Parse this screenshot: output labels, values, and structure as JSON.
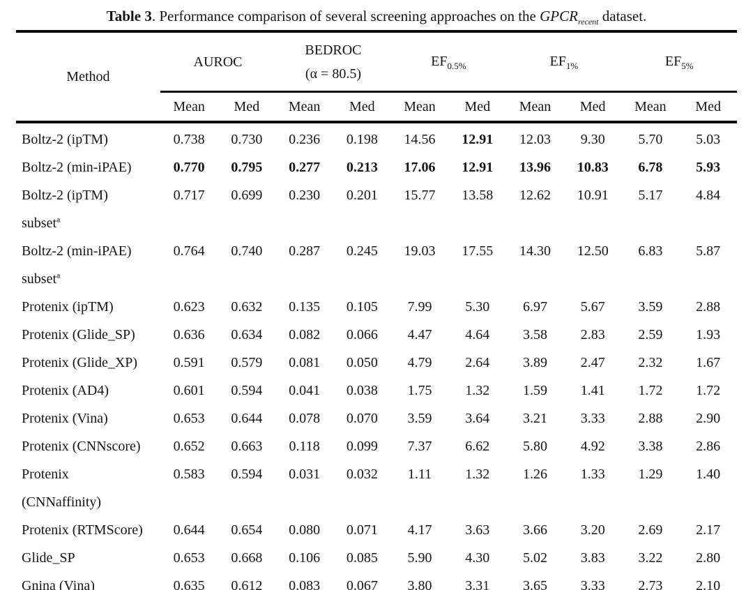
{
  "title": {
    "label": "Table 3",
    "body": ". Performance comparison of several screening approaches on the ",
    "dataset": "GPCR",
    "dataset_subscript": "recent",
    "suffix": " dataset."
  },
  "table": {
    "method_header": "Method",
    "column_groups": [
      {
        "label": "AUROC",
        "line2": "",
        "subscript": ""
      },
      {
        "label": "BEDROC",
        "line2": "(α = 80.5)",
        "subscript": ""
      },
      {
        "label": "EF",
        "line2": "",
        "subscript": "0.5%"
      },
      {
        "label": "EF",
        "line2": "",
        "subscript": "1%"
      },
      {
        "label": "EF",
        "line2": "",
        "subscript": "5%"
      }
    ],
    "stat_headers": [
      "Mean",
      "Med"
    ],
    "rows": [
      {
        "method_lines": [
          "Boltz-2 (ipTM)"
        ],
        "method_superscript": "",
        "values": [
          "0.738",
          "0.730",
          "0.236",
          "0.198",
          "14.56",
          "12.91",
          "12.03",
          "9.30",
          "5.70",
          "5.03"
        ],
        "bold": [
          5
        ]
      },
      {
        "method_lines": [
          "Boltz-2 (min-iPAE)"
        ],
        "method_superscript": "",
        "values": [
          "0.770",
          "0.795",
          "0.277",
          "0.213",
          "17.06",
          "12.91",
          "13.96",
          "10.83",
          "6.78",
          "5.93"
        ],
        "bold": [
          0,
          1,
          2,
          3,
          4,
          5,
          6,
          7,
          8,
          9
        ]
      },
      {
        "method_lines": [
          "Boltz-2 (ipTM)",
          "subset"
        ],
        "method_superscript": "a",
        "values": [
          "0.717",
          "0.699",
          "0.230",
          "0.201",
          "15.77",
          "13.58",
          "12.62",
          "10.91",
          "5.17",
          "4.84"
        ],
        "bold": []
      },
      {
        "method_lines": [
          "Boltz-2 (min-iPAE)",
          "subset"
        ],
        "method_superscript": "a",
        "values": [
          "0.764",
          "0.740",
          "0.287",
          "0.245",
          "19.03",
          "17.55",
          "14.30",
          "12.50",
          "6.83",
          "5.87"
        ],
        "bold": []
      },
      {
        "method_lines": [
          "Protenix (ipTM)"
        ],
        "method_superscript": "",
        "values": [
          "0.623",
          "0.632",
          "0.135",
          "0.105",
          "7.99",
          "5.30",
          "6.97",
          "5.67",
          "3.59",
          "2.88"
        ],
        "bold": []
      },
      {
        "method_lines": [
          "Protenix (Glide_SP)"
        ],
        "method_superscript": "",
        "values": [
          "0.636",
          "0.634",
          "0.082",
          "0.066",
          "4.47",
          "4.64",
          "3.58",
          "2.83",
          "2.59",
          "1.93"
        ],
        "bold": []
      },
      {
        "method_lines": [
          "Protenix (Glide_XP)"
        ],
        "method_superscript": "",
        "values": [
          "0.591",
          "0.579",
          "0.081",
          "0.050",
          "4.79",
          "2.64",
          "3.89",
          "2.47",
          "2.32",
          "1.67"
        ],
        "bold": []
      },
      {
        "method_lines": [
          "Protenix (AD4)"
        ],
        "method_superscript": "",
        "values": [
          "0.601",
          "0.594",
          "0.041",
          "0.038",
          "1.75",
          "1.32",
          "1.59",
          "1.41",
          "1.72",
          "1.72"
        ],
        "bold": []
      },
      {
        "method_lines": [
          "Protenix (Vina)"
        ],
        "method_superscript": "",
        "values": [
          "0.653",
          "0.644",
          "0.078",
          "0.070",
          "3.59",
          "3.64",
          "3.21",
          "3.33",
          "2.88",
          "2.90"
        ],
        "bold": []
      },
      {
        "method_lines": [
          "Protenix (CNNscore)"
        ],
        "method_superscript": "",
        "values": [
          "0.652",
          "0.663",
          "0.118",
          "0.099",
          "7.37",
          "6.62",
          "5.80",
          "4.92",
          "3.38",
          "2.86"
        ],
        "bold": []
      },
      {
        "method_lines": [
          "Protenix",
          "(CNNaffinity)"
        ],
        "method_superscript": "",
        "values": [
          "0.583",
          "0.594",
          "0.031",
          "0.032",
          "1.11",
          "1.32",
          "1.26",
          "1.33",
          "1.29",
          "1.40"
        ],
        "bold": []
      },
      {
        "method_lines": [
          "Protenix (RTMScore)"
        ],
        "method_superscript": "",
        "values": [
          "0.644",
          "0.654",
          "0.080",
          "0.071",
          "4.17",
          "3.63",
          "3.66",
          "3.20",
          "2.69",
          "2.17"
        ],
        "bold": []
      },
      {
        "method_lines": [
          "Glide_SP"
        ],
        "method_superscript": "",
        "values": [
          "0.653",
          "0.668",
          "0.106",
          "0.085",
          "5.90",
          "4.30",
          "5.02",
          "3.83",
          "3.22",
          "2.80"
        ],
        "bold": []
      },
      {
        "method_lines": [
          "Gnina (Vina)"
        ],
        "method_superscript": "",
        "values": [
          "0.635",
          "0.612",
          "0.083",
          "0.067",
          "3.80",
          "3.31",
          "3.65",
          "3.33",
          "2.73",
          "2.10"
        ],
        "bold": []
      }
    ]
  },
  "colors": {
    "background": "#ffffff",
    "text": "#151515",
    "rule": "#0a0a0a"
  }
}
